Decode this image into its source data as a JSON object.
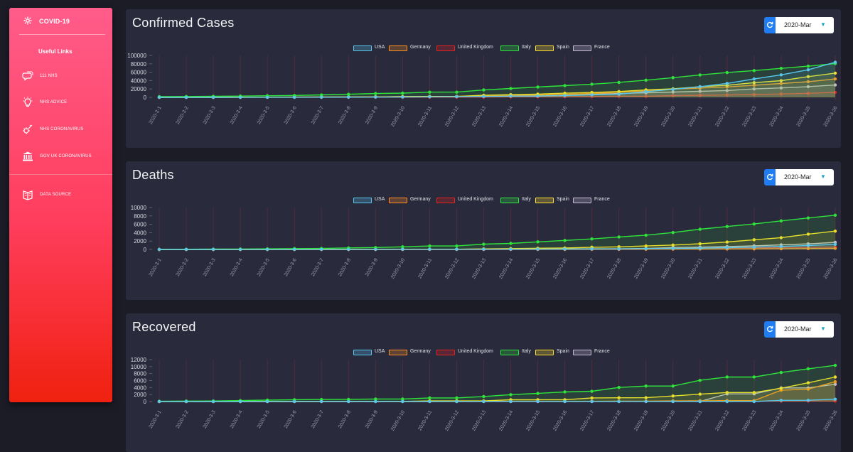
{
  "sidebar": {
    "brand": "COVID-19",
    "section": "Useful Links",
    "items": [
      {
        "label": "111 NHS",
        "icon": "chat-icon"
      },
      {
        "label": "NHS ADVICE",
        "icon": "lightbulb-icon"
      },
      {
        "label": "NHS CORONAVIRUS",
        "icon": "virus-icon"
      },
      {
        "label": "GOV UK CORONAVIRUS",
        "icon": "government-icon"
      },
      {
        "label": "DATA SOURCE",
        "icon": "database-icon"
      }
    ]
  },
  "month_selector": {
    "value": "2020-Mar"
  },
  "legend": [
    {
      "name": "USA",
      "color": "#57c7ee"
    },
    {
      "name": "Germany",
      "color": "#ff8f1f"
    },
    {
      "name": "United Kingdom",
      "color": "#e8211e"
    },
    {
      "name": "Italy",
      "color": "#2ee33a"
    },
    {
      "name": "Spain",
      "color": "#ffde2a"
    },
    {
      "name": "France",
      "color": "#c7bdd4"
    }
  ],
  "panels": [
    {
      "title": "Confirmed Cases"
    },
    {
      "title": "Deaths"
    },
    {
      "title": "Recovered"
    }
  ],
  "chart_data": [
    {
      "type": "line",
      "title": "Confirmed Cases",
      "x": [
        "2020-3-1",
        "2020-3-2",
        "2020-3-3",
        "2020-3-4",
        "2020-3-5",
        "2020-3-6",
        "2020-3-7",
        "2020-3-8",
        "2020-3-9",
        "2020-3-10",
        "2020-3-11",
        "2020-3-12",
        "2020-3-13",
        "2020-3-14",
        "2020-3-15",
        "2020-3-16",
        "2020-3-17",
        "2020-3-18",
        "2020-3-19",
        "2020-3-20",
        "2020-3-21",
        "2020-3-22",
        "2020-3-23",
        "2020-3-24",
        "2020-3-25",
        "2020-3-26"
      ],
      "ylim": [
        0,
        100000
      ],
      "yticks": [
        0,
        20000,
        40000,
        60000,
        80000,
        100000
      ],
      "series": [
        {
          "name": "USA",
          "values": [
            30,
            53,
            73,
            104,
            174,
            222,
            337,
            451,
            519,
            711,
            1109,
            1561,
            2157,
            2870,
            2968,
            4360,
            6141,
            7786,
            13680,
            19101,
            25493,
            33276,
            43847,
            53740,
            65778,
            83836
          ]
        },
        {
          "name": "Germany",
          "values": [
            130,
            159,
            196,
            262,
            482,
            670,
            799,
            1040,
            1176,
            1457,
            1908,
            2078,
            3675,
            4585,
            5795,
            7272,
            9257,
            12327,
            15320,
            19848,
            22213,
            24873,
            29056,
            32986,
            37323,
            43938
          ]
        },
        {
          "name": "United Kingdom",
          "values": [
            36,
            40,
            51,
            86,
            116,
            164,
            207,
            274,
            322,
            384,
            459,
            459,
            802,
            1144,
            1145,
            1551,
            1960,
            2642,
            2716,
            4014,
            5067,
            5745,
            6726,
            8164,
            9640,
            11812
          ]
        },
        {
          "name": "Italy",
          "values": [
            1694,
            2036,
            2502,
            3089,
            3858,
            4636,
            5883,
            7375,
            9172,
            10149,
            12462,
            12462,
            17660,
            21157,
            24747,
            27980,
            31506,
            35713,
            41035,
            47021,
            53578,
            59138,
            63927,
            69176,
            74386,
            80589
          ]
        },
        {
          "name": "Spain",
          "values": [
            84,
            120,
            165,
            222,
            259,
            400,
            500,
            673,
            1073,
            1695,
            2277,
            2277,
            5232,
            6391,
            7798,
            9942,
            11748,
            13910,
            17963,
            20410,
            25374,
            28768,
            35136,
            39885,
            49515,
            57786
          ]
        },
        {
          "name": "France",
          "values": [
            130,
            191,
            204,
            288,
            380,
            656,
            957,
            1134,
            1217,
            1792,
            2284,
            2284,
            3667,
            4480,
            4513,
            6650,
            7699,
            9124,
            10970,
            12758,
            14463,
            16243,
            20123,
            22622,
            25600,
            29551
          ]
        }
      ]
    },
    {
      "type": "line",
      "title": "Deaths",
      "x": [
        "2020-3-1",
        "2020-3-2",
        "2020-3-3",
        "2020-3-4",
        "2020-3-5",
        "2020-3-6",
        "2020-3-7",
        "2020-3-8",
        "2020-3-9",
        "2020-3-10",
        "2020-3-11",
        "2020-3-12",
        "2020-3-13",
        "2020-3-14",
        "2020-3-15",
        "2020-3-16",
        "2020-3-17",
        "2020-3-18",
        "2020-3-19",
        "2020-3-20",
        "2020-3-21",
        "2020-3-22",
        "2020-3-23",
        "2020-3-24",
        "2020-3-25",
        "2020-3-26"
      ],
      "ylim": [
        0,
        10000
      ],
      "yticks": [
        0,
        2000,
        4000,
        6000,
        8000,
        10000
      ],
      "series": [
        {
          "name": "USA",
          "values": [
            1,
            6,
            7,
            11,
            12,
            14,
            17,
            21,
            22,
            28,
            36,
            40,
            47,
            54,
            63,
            85,
            108,
            118,
            200,
            244,
            307,
            427,
            552,
            706,
            942,
            1209
          ]
        },
        {
          "name": "Germany",
          "values": [
            0,
            0,
            0,
            0,
            0,
            0,
            0,
            0,
            2,
            2,
            3,
            3,
            7,
            9,
            11,
            17,
            24,
            28,
            44,
            67,
            84,
            94,
            123,
            157,
            206,
            267
          ]
        },
        {
          "name": "United Kingdom",
          "values": [
            0,
            0,
            0,
            0,
            1,
            2,
            2,
            3,
            4,
            6,
            8,
            8,
            8,
            21,
            21,
            56,
            56,
            72,
            138,
            178,
            234,
            282,
            336,
            423,
            475,
            578
          ]
        },
        {
          "name": "Italy",
          "values": [
            34,
            52,
            79,
            107,
            148,
            197,
            233,
            366,
            463,
            631,
            827,
            827,
            1266,
            1441,
            1809,
            2158,
            2503,
            2978,
            3405,
            4032,
            4825,
            5476,
            6077,
            6820,
            7503,
            8165
          ]
        },
        {
          "name": "Spain",
          "values": [
            0,
            0,
            1,
            2,
            3,
            5,
            10,
            17,
            28,
            35,
            54,
            55,
            133,
            195,
            289,
            342,
            533,
            623,
            830,
            1043,
            1375,
            1772,
            2311,
            2808,
            3647,
            4365
          ]
        },
        {
          "name": "France",
          "values": [
            2,
            3,
            4,
            4,
            6,
            9,
            11,
            19,
            19,
            33,
            48,
            48,
            79,
            91,
            91,
            149,
            149,
            149,
            244,
            451,
            563,
            676,
            862,
            1102,
            1333,
            1698
          ]
        }
      ]
    },
    {
      "type": "line",
      "title": "Recovered",
      "x": [
        "2020-3-1",
        "2020-3-2",
        "2020-3-3",
        "2020-3-4",
        "2020-3-5",
        "2020-3-6",
        "2020-3-7",
        "2020-3-8",
        "2020-3-9",
        "2020-3-10",
        "2020-3-11",
        "2020-3-12",
        "2020-3-13",
        "2020-3-14",
        "2020-3-15",
        "2020-3-16",
        "2020-3-17",
        "2020-3-18",
        "2020-3-19",
        "2020-3-20",
        "2020-3-21",
        "2020-3-22",
        "2020-3-23",
        "2020-3-24",
        "2020-3-25",
        "2020-3-26"
      ],
      "ylim": [
        0,
        12000
      ],
      "yticks": [
        0,
        2000,
        4000,
        6000,
        8000,
        10000,
        12000
      ],
      "series": [
        {
          "name": "USA",
          "values": [
            7,
            7,
            7,
            7,
            7,
            7,
            7,
            7,
            7,
            8,
            8,
            12,
            12,
            12,
            12,
            17,
            17,
            17,
            17,
            17,
            17,
            0,
            0,
            348,
            361,
            681
          ]
        },
        {
          "name": "Germany",
          "values": [
            16,
            16,
            16,
            16,
            16,
            17,
            18,
            18,
            18,
            18,
            25,
            25,
            46,
            46,
            46,
            67,
            67,
            105,
            113,
            180,
            233,
            266,
            266,
            3243,
            3547,
            5673
          ]
        },
        {
          "name": "United Kingdom",
          "values": [
            8,
            8,
            8,
            8,
            8,
            8,
            18,
            18,
            18,
            18,
            19,
            19,
            19,
            19,
            19,
            52,
            67,
            67,
            67,
            67,
            67,
            67,
            67,
            135,
            135,
            135
          ]
        },
        {
          "name": "Italy",
          "values": [
            83,
            149,
            160,
            276,
            414,
            523,
            589,
            622,
            724,
            724,
            1045,
            1045,
            1439,
            1966,
            2335,
            2749,
            2941,
            4025,
            4440,
            4440,
            6072,
            7024,
            7024,
            8326,
            9362,
            10361
          ]
        },
        {
          "name": "Spain",
          "values": [
            2,
            2,
            2,
            2,
            2,
            2,
            30,
            30,
            32,
            32,
            183,
            183,
            193,
            517,
            517,
            530,
            1028,
            1081,
            1107,
            1588,
            2125,
            2575,
            2575,
            3794,
            5367,
            7015
          ]
        },
        {
          "name": "France",
          "values": [
            12,
            12,
            12,
            12,
            12,
            12,
            12,
            12,
            12,
            12,
            12,
            12,
            12,
            12,
            12,
            12,
            12,
            12,
            12,
            12,
            12,
            2200,
            2200,
            3900,
            3900,
            4948
          ]
        }
      ]
    }
  ]
}
